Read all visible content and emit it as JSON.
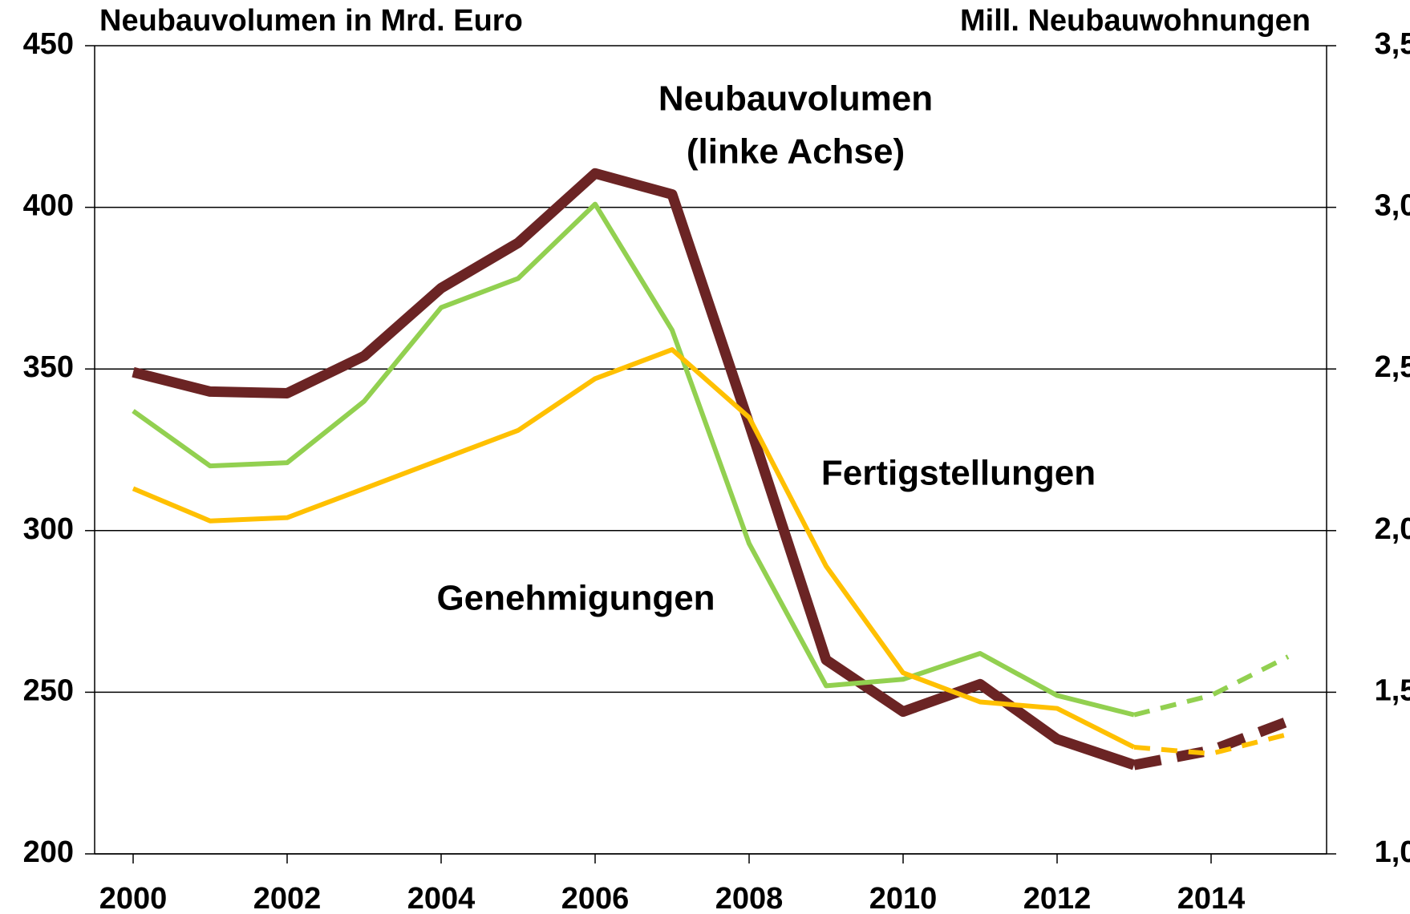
{
  "chart_data": {
    "type": "line",
    "y_title": "Neubauvolumen in Mrd. Euro",
    "y2_title": "Mill. Neubauwohnungen",
    "annotations": [
      {
        "text": "Neubauvolumen",
        "color": "#6b2424"
      },
      {
        "text": "(linke Achse)",
        "color": "#6b2424"
      },
      {
        "text": "Fertigstellungen",
        "color": "#ffc000"
      },
      {
        "text": "Genehmigungen",
        "color": "#92d050"
      }
    ],
    "x": [
      2000,
      2001,
      2002,
      2003,
      2004,
      2005,
      2006,
      2007,
      2008,
      2009,
      2010,
      2011,
      2012,
      2013,
      2014,
      2015
    ],
    "dashed_from_x": 2013,
    "series": [
      {
        "name": "Neubauvolumen",
        "color": "#6b2424",
        "axis": "y",
        "values": [
          349,
          343,
          342.5,
          354,
          375,
          389,
          410.5,
          404,
          333,
          260,
          244,
          252.5,
          235.5,
          227.5,
          232,
          241
        ]
      },
      {
        "name": "Genehmigungen",
        "color": "#92d050",
        "axis": "y2",
        "values": [
          2.37,
          2.2,
          2.21,
          2.4,
          2.69,
          2.78,
          3.01,
          2.62,
          1.96,
          1.52,
          1.54,
          1.62,
          1.49,
          1.43,
          1.49,
          1.61
        ]
      },
      {
        "name": "Fertigstellungen",
        "color": "#ffc000",
        "axis": "y2",
        "values": [
          2.13,
          2.03,
          2.04,
          2.13,
          2.22,
          2.31,
          2.47,
          2.56,
          2.35,
          1.89,
          1.56,
          1.47,
          1.45,
          1.33,
          1.31,
          1.37
        ]
      }
    ],
    "xlim": [
      1999.5,
      2015.5
    ],
    "xticks": [
      2000,
      2002,
      2004,
      2006,
      2008,
      2010,
      2012,
      2014
    ],
    "ylim": [
      200,
      450
    ],
    "yticks": [
      200,
      250,
      300,
      350,
      400,
      450
    ],
    "y2lim": [
      1.0,
      3.5
    ],
    "y2ticks": [
      {
        "value": 1.0,
        "label": "1,0"
      },
      {
        "value": 1.5,
        "label": "1,5"
      },
      {
        "value": 2.0,
        "label": "2,0"
      },
      {
        "value": 2.5,
        "label": "2,5"
      },
      {
        "value": 3.0,
        "label": "3,0"
      },
      {
        "value": 3.5,
        "label": "3,5"
      }
    ],
    "grid": true
  }
}
